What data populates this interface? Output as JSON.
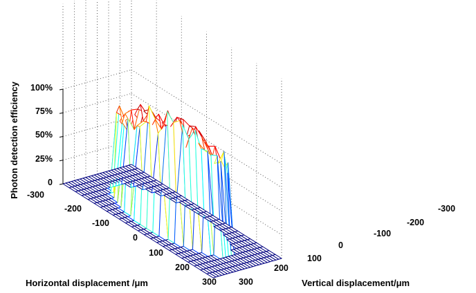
{
  "chart_data": {
    "type": "surface",
    "zlabel": "Photon detection efficiency",
    "xlabel": "Horizontal displacement /μm",
    "ylabel": "Vertical displacement/μm",
    "x_ticks": [
      "-300",
      "-200",
      "-100",
      "0",
      "100",
      "200",
      "300"
    ],
    "y_ticks": [
      "-300",
      "-200",
      "-100",
      "0",
      "100",
      "200",
      "300"
    ],
    "z_ticks": [
      "0",
      "25%",
      "50%",
      "75%",
      "100%"
    ],
    "xlim": [
      -300,
      300
    ],
    "ylim": [
      -300,
      300
    ],
    "zlim": [
      0,
      1.0
    ],
    "grid": true,
    "colormap": "jet",
    "active_area_radius_um": 200,
    "plateau_efficiency": 0.92,
    "grid_step_um": 25
  },
  "colors": {
    "axis": "#000000",
    "grid": "#555555",
    "low": "#00007f",
    "high": "#7f0000"
  }
}
